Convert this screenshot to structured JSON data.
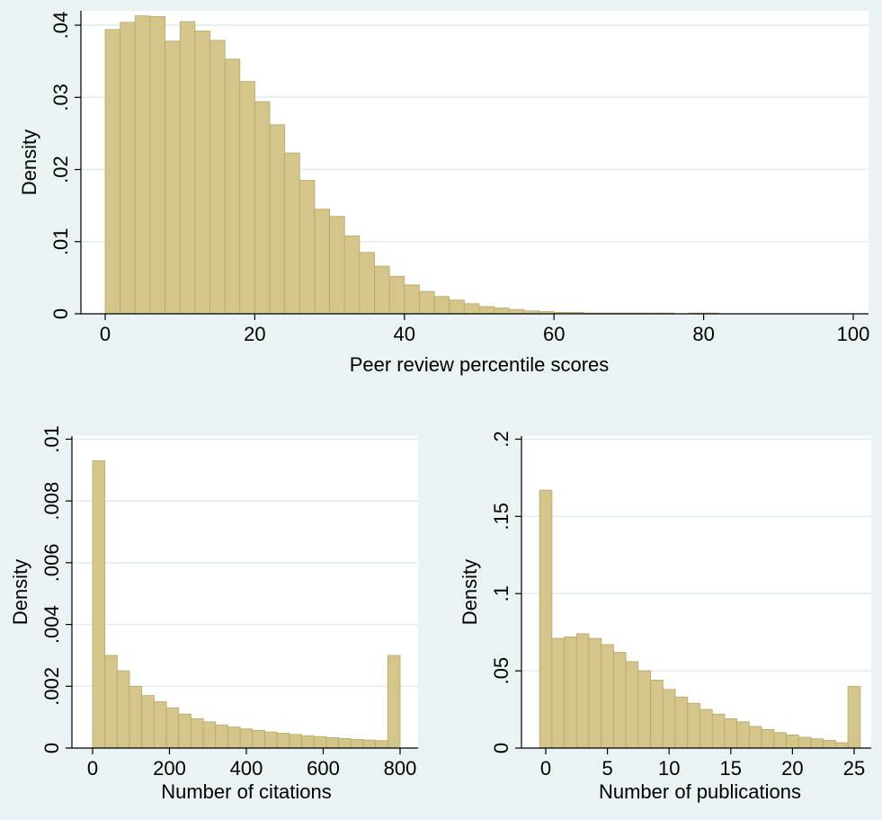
{
  "chart_data": [
    {
      "type": "bar",
      "xlabel": "Peer review percentile scores",
      "ylabel": "Density",
      "xlim": [
        0,
        100
      ],
      "ylim": [
        0,
        0.042
      ],
      "x_ticks": [
        {
          "value": 0,
          "label": "0"
        },
        {
          "value": 20,
          "label": "20"
        },
        {
          "value": 40,
          "label": "40"
        },
        {
          "value": 60,
          "label": "60"
        },
        {
          "value": 80,
          "label": "80"
        },
        {
          "value": 100,
          "label": "100"
        }
      ],
      "y_ticks": [
        {
          "value": 0,
          "label": "0"
        },
        {
          "value": 0.01,
          "label": ".01"
        },
        {
          "value": 0.02,
          "label": ".02"
        },
        {
          "value": 0.03,
          "label": ".03"
        },
        {
          "value": 0.04,
          "label": ".04"
        }
      ],
      "grid": true,
      "bin_start": 0,
      "bin_width": 2,
      "values": [
        0.0394,
        0.0404,
        0.0413,
        0.0412,
        0.0378,
        0.0405,
        0.0392,
        0.0379,
        0.0353,
        0.0322,
        0.0294,
        0.0262,
        0.0223,
        0.0185,
        0.0145,
        0.0135,
        0.0108,
        0.0085,
        0.0066,
        0.0052,
        0.004,
        0.0031,
        0.0024,
        0.0019,
        0.0014,
        0.001,
        0.0008,
        0.0006,
        0.0004,
        0.0003,
        0.0002,
        0.0002,
        0.0001,
        0.0001,
        0.0001,
        0.0001,
        0.0001,
        0.0001,
        0.0,
        0.0001,
        0.0001,
        0.0,
        0.0,
        0.0,
        0.0,
        0.0,
        0.0,
        0.0,
        0.0,
        0.0
      ]
    },
    {
      "type": "bar",
      "xlabel": "Number of citations",
      "ylabel": "Density",
      "xlim": [
        0,
        800
      ],
      "ylim": [
        0,
        0.0101
      ],
      "x_ticks": [
        {
          "value": 0,
          "label": "0"
        },
        {
          "value": 200,
          "label": "200"
        },
        {
          "value": 400,
          "label": "400"
        },
        {
          "value": 600,
          "label": "600"
        },
        {
          "value": 800,
          "label": "800"
        }
      ],
      "y_ticks": [
        {
          "value": 0,
          "label": "0"
        },
        {
          "value": 0.002,
          "label": ".002"
        },
        {
          "value": 0.004,
          "label": ".004"
        },
        {
          "value": 0.006,
          "label": ".006"
        },
        {
          "value": 0.008,
          "label": ".008"
        },
        {
          "value": 0.01,
          "label": ".01"
        }
      ],
      "grid": true,
      "bin_start": 0,
      "bin_width": 32,
      "values": [
        0.0093,
        0.003,
        0.0025,
        0.002,
        0.0017,
        0.0015,
        0.0013,
        0.0011,
        0.00095,
        0.00085,
        0.00075,
        0.00068,
        0.00062,
        0.00057,
        0.00052,
        0.00048,
        0.00044,
        0.0004,
        0.00037,
        0.00034,
        0.00031,
        0.00028,
        0.00026,
        0.00024,
        0.003
      ]
    },
    {
      "type": "bar",
      "xlabel": "Number of publications",
      "ylabel": "Density",
      "xlim": [
        0,
        25
      ],
      "ylim": [
        0,
        0.202
      ],
      "x_ticks": [
        {
          "value": 0,
          "label": "0"
        },
        {
          "value": 5,
          "label": "5"
        },
        {
          "value": 10,
          "label": "10"
        },
        {
          "value": 15,
          "label": "15"
        },
        {
          "value": 20,
          "label": "20"
        },
        {
          "value": 25,
          "label": "25"
        }
      ],
      "y_ticks": [
        {
          "value": 0,
          "label": "0"
        },
        {
          "value": 0.05,
          "label": ".05"
        },
        {
          "value": 0.1,
          "label": ".1"
        },
        {
          "value": 0.15,
          "label": ".15"
        },
        {
          "value": 0.2,
          "label": ".2"
        }
      ],
      "grid": true,
      "bin_start": -0.5,
      "bin_width": 1,
      "values": [
        0.167,
        0.071,
        0.072,
        0.074,
        0.071,
        0.067,
        0.062,
        0.056,
        0.05,
        0.044,
        0.038,
        0.033,
        0.029,
        0.025,
        0.022,
        0.019,
        0.017,
        0.014,
        0.012,
        0.01,
        0.0085,
        0.007,
        0.006,
        0.005,
        0.0035,
        0.04
      ]
    }
  ],
  "colors": {
    "background": "#eaf2f3",
    "plot_region": "#ffffff",
    "bar_fill": "#d4c68a",
    "bar_stroke": "#b5a867",
    "gridline": "#e3ecee",
    "axis": "#000000"
  }
}
